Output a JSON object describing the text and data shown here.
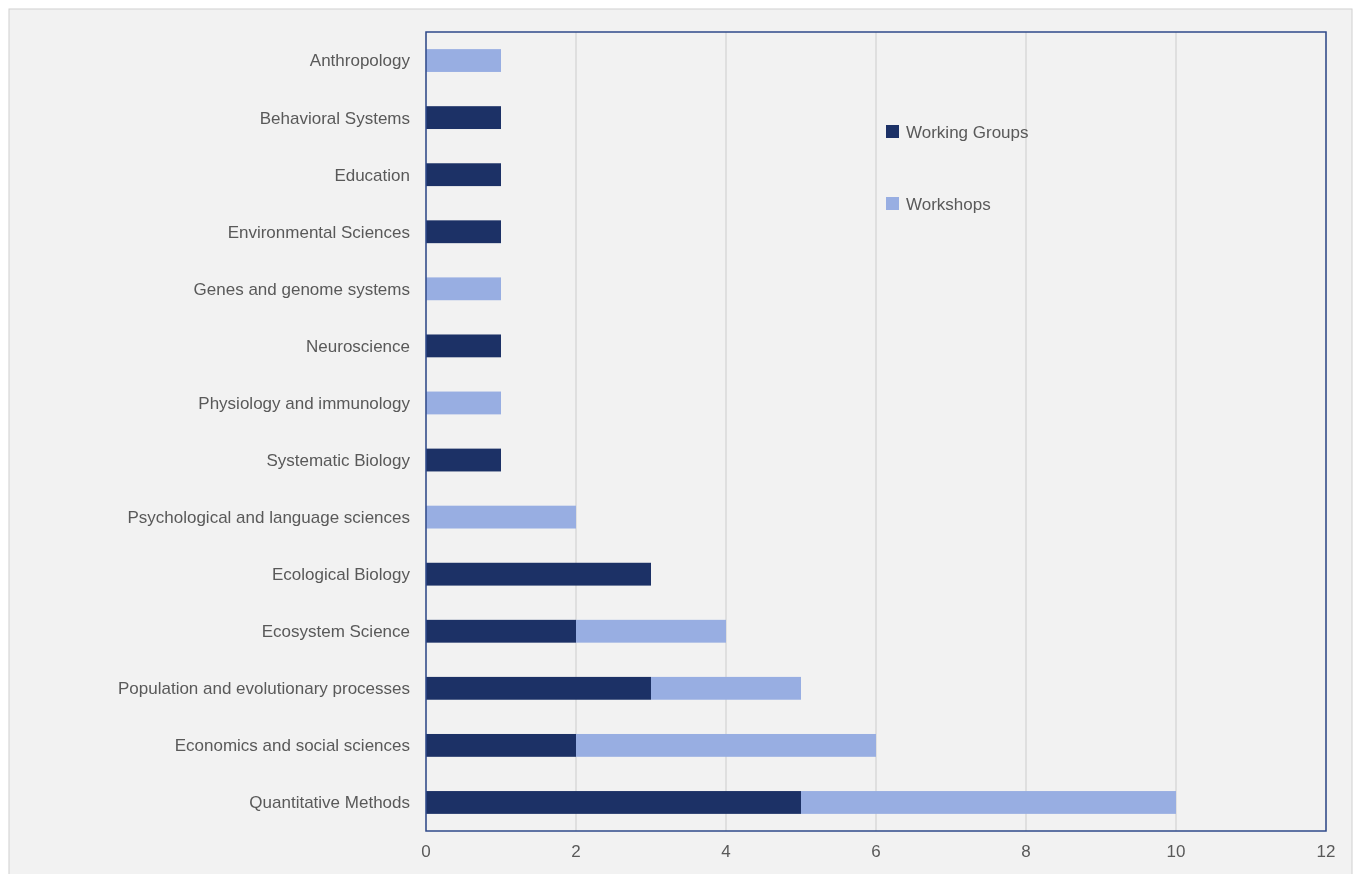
{
  "chart_data": {
    "type": "bar",
    "orientation": "horizontal",
    "stacked": true,
    "categories": [
      "Anthropology",
      "Behavioral Systems",
      "Education",
      "Environmental Sciences",
      "Genes and genome systems",
      "Neuroscience",
      "Physiology and immunology",
      "Systematic Biology",
      "Psychological and language sciences",
      "Ecological Biology",
      "Ecosystem Science",
      "Population and evolutionary processes",
      "Economics and social sciences",
      "Quantitative Methods"
    ],
    "series": [
      {
        "name": "Working Groups",
        "color": "#1c3166",
        "values": [
          0,
          1,
          1,
          1,
          0,
          1,
          0,
          1,
          0,
          3,
          2,
          3,
          2,
          5
        ]
      },
      {
        "name": "Workshops",
        "color": "#98aee2",
        "values": [
          1,
          0,
          0,
          0,
          1,
          0,
          1,
          0,
          2,
          0,
          2,
          2,
          4,
          5
        ]
      }
    ],
    "xlim": [
      0,
      12
    ],
    "xticks": [
      0,
      2,
      4,
      6,
      8,
      10,
      12
    ],
    "grid": "x",
    "legend": "top right"
  }
}
